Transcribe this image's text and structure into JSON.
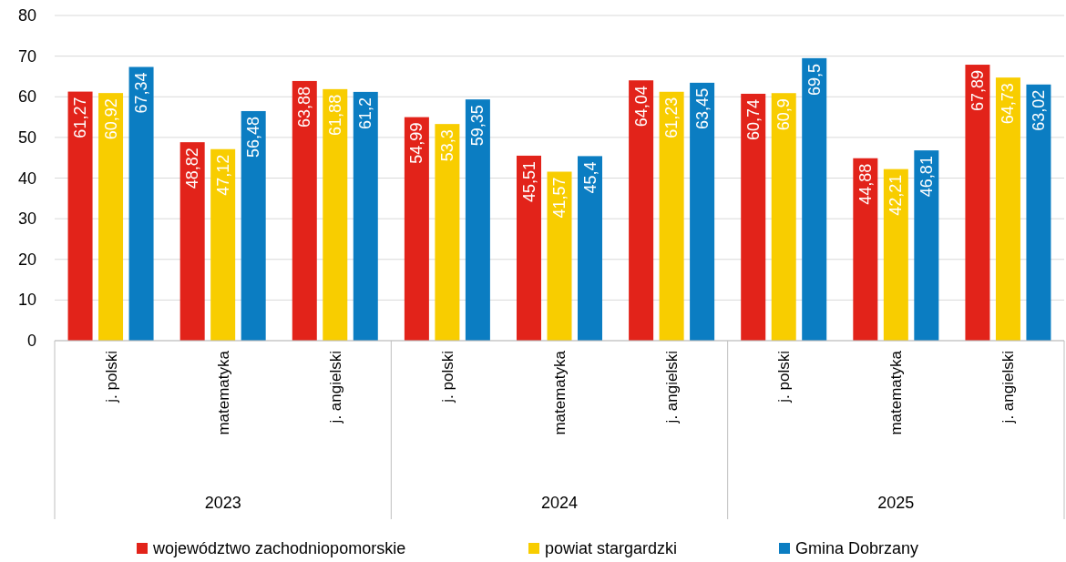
{
  "chart_data": {
    "type": "bar",
    "categories": [
      "j. polski",
      "matematyka",
      "j. angielski",
      "j. polski",
      "matematyka",
      "j. angielski",
      "j. polski",
      "matematyka",
      "j. angielski"
    ],
    "series": [
      {
        "name": "województwo zachodniopomorskie",
        "color": "#e2231a",
        "values": [
          61.27,
          48.82,
          63.88,
          54.99,
          45.51,
          64.04,
          60.74,
          44.88,
          67.89
        ],
        "value_labels": [
          "61,27",
          "48,82",
          "63,88",
          "54,99",
          "45,51",
          "64,04",
          "60,74",
          "44,88",
          "67,89"
        ]
      },
      {
        "name": "powiat stargardzki",
        "color": "#f8cd00",
        "values": [
          60.92,
          47.12,
          61.88,
          53.3,
          41.57,
          61.23,
          60.9,
          42.21,
          64.73
        ],
        "value_labels": [
          "60,92",
          "47,12",
          "61,88",
          "53,3",
          "41,57",
          "61,23",
          "60,9",
          "42,21",
          "64,73"
        ]
      },
      {
        "name": "Gmina Dobrzany",
        "color": "#0b7dc2",
        "values": [
          67.34,
          56.48,
          61.2,
          59.35,
          45.4,
          63.45,
          69.5,
          46.81,
          63.02
        ],
        "value_labels": [
          "67,34",
          "56,48",
          "61,2",
          "59,35",
          "45,4",
          "63,45",
          "69,5",
          "46,81",
          "63,02"
        ]
      }
    ],
    "annotations": [
      "2023",
      "2024",
      "2025"
    ],
    "ylim": [
      0,
      80
    ],
    "yticks": [
      0,
      10,
      20,
      30,
      40,
      50,
      60,
      70,
      80
    ],
    "grid": "y",
    "legend": "bottom"
  }
}
